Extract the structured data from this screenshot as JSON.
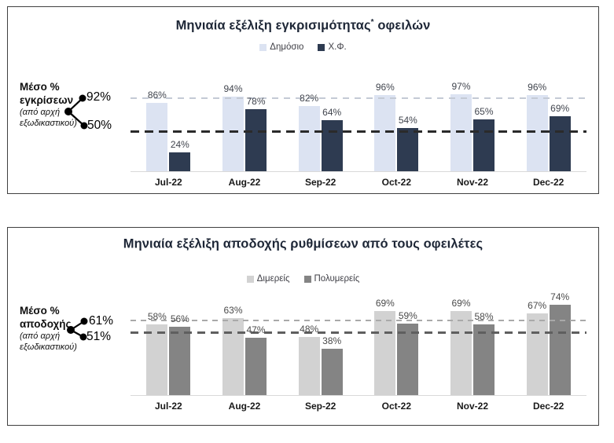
{
  "page": {
    "background": "#ffffff"
  },
  "chart_data": [
    {
      "type": "bar",
      "title": "Μηνιαία εξέλιξη εγκρισιμότητας* οφειλών",
      "title_parts": {
        "main": "Μηνιαία εξέλιξη εγκρισιμότητας",
        "sup": "*",
        "rest": " οφειλών"
      },
      "legend_position": "top",
      "grid": false,
      "unit": "%",
      "ylim": [
        0,
        100
      ],
      "categories": [
        "Jul-22",
        "Aug-22",
        "Sep-22",
        "Oct-22",
        "Nov-22",
        "Dec-22"
      ],
      "series": [
        {
          "name": "Δημόσιο",
          "color": "#dce3f2",
          "values": [
            86,
            94,
            82,
            96,
            97,
            96
          ]
        },
        {
          "name": "Χ.Φ.",
          "color": "#2e3b51",
          "values": [
            24,
            78,
            64,
            54,
            65,
            69
          ]
        }
      ],
      "ref_lines": [
        {
          "label": "92%",
          "value": 92,
          "style": "light_dashed",
          "color": "#c4cad5"
        },
        {
          "label": "50%",
          "value": 50,
          "style": "dark_dashed",
          "color": "#2a2a2a"
        }
      ],
      "side_note": {
        "bold_lines": [
          "Μέσο %",
          "εγκρίσεων"
        ],
        "italic_lines": [
          "(από αρχή",
          "εξωδικαστικού)"
        ]
      },
      "value_label_color": "#41454e",
      "axis_color": "#d9d9d9"
    },
    {
      "type": "bar",
      "title": "Μηνιαία εξέλιξη αποδοχής ρυθμίσεων από τους οφειλέτες",
      "title_parts": {
        "main": "Μηνιαία εξέλιξη αποδοχής ρυθμίσεων από τους οφειλέτες",
        "sup": "",
        "rest": ""
      },
      "legend_position": "top",
      "grid": false,
      "unit": "%",
      "ylim": [
        0,
        100
      ],
      "categories": [
        "Jul-22",
        "Aug-22",
        "Sep-22",
        "Oct-22",
        "Nov-22",
        "Dec-22"
      ],
      "series": [
        {
          "name": "Διμερείς",
          "color": "#d2d2d2",
          "values": [
            58,
            63,
            48,
            69,
            69,
            67
          ]
        },
        {
          "name": "Πολυμερείς",
          "color": "#848484",
          "values": [
            56,
            47,
            38,
            59,
            58,
            74
          ]
        }
      ],
      "ref_lines": [
        {
          "label": "61%",
          "value": 61,
          "style": "light_dashed",
          "color": "#a9a9a9"
        },
        {
          "label": "51%",
          "value": 51,
          "style": "dark_dashed",
          "color": "#5f5f5f"
        }
      ],
      "side_note": {
        "bold_lines": [
          "Μέσο %",
          "αποδοχής"
        ],
        "italic_lines": [
          "(από αρχή",
          "εξωδικαστικού)"
        ]
      },
      "value_label_color": "#4a4a4a",
      "axis_color": "#d9d9d9"
    }
  ]
}
